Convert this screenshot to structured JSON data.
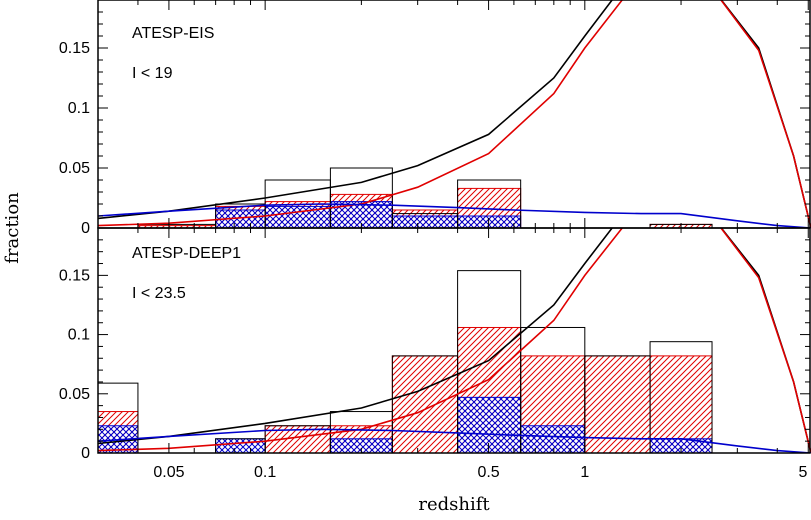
{
  "colors": {
    "axes": "#000000",
    "red": "#e00000",
    "blue": "#0000cc",
    "black": "#000000"
  },
  "chart_data": [
    {
      "type": "histogram+line",
      "panel_label": "ATESP-EIS",
      "panel_sublabel": "I < 19",
      "xlabel": "",
      "ylabel": "fraction",
      "xscale": "log",
      "xlim": [
        0.03,
        5.1
      ],
      "ylim": [
        0,
        0.19
      ],
      "grid": false,
      "x_ticks": [
        "0.05",
        "0.1",
        "0.5",
        "1",
        "5"
      ],
      "y_ticks": [
        "0",
        "0.05",
        "0.1",
        "0.15"
      ],
      "histograms": [
        {
          "name": "total",
          "style": "outline",
          "color": "#000000",
          "bins": [
            {
              "x0": 0.03,
              "x1": 0.04,
              "y": 0.0
            },
            {
              "x0": 0.04,
              "x1": 0.07,
              "y": 0.003
            },
            {
              "x0": 0.07,
              "x1": 0.1,
              "y": 0.02
            },
            {
              "x0": 0.1,
              "x1": 0.16,
              "y": 0.04
            },
            {
              "x0": 0.16,
              "x1": 0.25,
              "y": 0.05
            },
            {
              "x0": 0.25,
              "x1": 0.4,
              "y": 0.012
            },
            {
              "x0": 0.4,
              "x1": 0.63,
              "y": 0.04
            },
            {
              "x0": 1.6,
              "x1": 2.5,
              "y": 0.003
            }
          ]
        },
        {
          "name": "red-hatched",
          "style": "hatch-diagonal",
          "color": "#e00000",
          "bins": [
            {
              "x0": 0.04,
              "x1": 0.07,
              "y": 0.002
            },
            {
              "x0": 0.07,
              "x1": 0.1,
              "y": 0.018
            },
            {
              "x0": 0.1,
              "x1": 0.16,
              "y": 0.022
            },
            {
              "x0": 0.16,
              "x1": 0.25,
              "y": 0.028
            },
            {
              "x0": 0.25,
              "x1": 0.4,
              "y": 0.015
            },
            {
              "x0": 0.4,
              "x1": 0.63,
              "y": 0.033
            },
            {
              "x0": 1.6,
              "x1": 2.5,
              "y": 0.003
            }
          ]
        },
        {
          "name": "blue-crosshatched",
          "style": "hatch-cross",
          "color": "#0000cc",
          "bins": [
            {
              "x0": 0.07,
              "x1": 0.1,
              "y": 0.015
            },
            {
              "x0": 0.1,
              "x1": 0.16,
              "y": 0.018
            },
            {
              "x0": 0.16,
              "x1": 0.25,
              "y": 0.022
            },
            {
              "x0": 0.25,
              "x1": 0.4,
              "y": 0.01
            },
            {
              "x0": 0.4,
              "x1": 0.63,
              "y": 0.01
            }
          ]
        }
      ],
      "curves": [
        {
          "color": "#000000",
          "x": [
            0.03,
            0.05,
            0.1,
            0.2,
            0.3,
            0.5,
            0.8,
            1.0,
            1.3,
            2.5,
            3.5,
            4.5,
            5.1
          ],
          "y": [
            0.008,
            0.014,
            0.025,
            0.038,
            0.052,
            0.078,
            0.125,
            0.16,
            0.2,
            0.2,
            0.15,
            0.06,
            0.0
          ]
        },
        {
          "color": "#e00000",
          "x": [
            0.03,
            0.05,
            0.1,
            0.2,
            0.3,
            0.5,
            0.8,
            1.0,
            1.4,
            2.5,
            3.5,
            4.5,
            5.1
          ],
          "y": [
            0.002,
            0.004,
            0.01,
            0.02,
            0.034,
            0.062,
            0.112,
            0.15,
            0.2,
            0.2,
            0.148,
            0.06,
            0.0
          ]
        },
        {
          "color": "#0000cc",
          "x": [
            0.03,
            0.05,
            0.1,
            0.15,
            0.25,
            0.4,
            0.6,
            1.0,
            1.5,
            2.0,
            3.0,
            4.0,
            5.1
          ],
          "y": [
            0.01,
            0.014,
            0.019,
            0.02,
            0.019,
            0.017,
            0.015,
            0.013,
            0.012,
            0.012,
            0.006,
            0.002,
            0.0
          ]
        }
      ]
    },
    {
      "type": "histogram+line",
      "panel_label": "ATESP-DEEP1",
      "panel_sublabel": "I < 23.5",
      "xlabel": "redshift",
      "ylabel": "fraction",
      "xscale": "log",
      "xlim": [
        0.03,
        5.1
      ],
      "ylim": [
        0,
        0.19
      ],
      "grid": false,
      "x_ticks": [
        "0.05",
        "0.1",
        "0.5",
        "1",
        "5"
      ],
      "y_ticks": [
        "0",
        "0.05",
        "0.1",
        "0.15"
      ],
      "histograms": [
        {
          "name": "total",
          "style": "outline",
          "color": "#000000",
          "bins": [
            {
              "x0": 0.03,
              "x1": 0.04,
              "y": 0.059
            },
            {
              "x0": 0.04,
              "x1": 0.07,
              "y": 0.0
            },
            {
              "x0": 0.07,
              "x1": 0.1,
              "y": 0.012
            },
            {
              "x0": 0.1,
              "x1": 0.16,
              "y": 0.023
            },
            {
              "x0": 0.16,
              "x1": 0.25,
              "y": 0.035
            },
            {
              "x0": 0.25,
              "x1": 0.4,
              "y": 0.082
            },
            {
              "x0": 0.4,
              "x1": 0.63,
              "y": 0.154
            },
            {
              "x0": 0.63,
              "x1": 1.0,
              "y": 0.106
            },
            {
              "x0": 1.0,
              "x1": 1.6,
              "y": 0.082
            },
            {
              "x0": 1.6,
              "x1": 2.5,
              "y": 0.094
            }
          ]
        },
        {
          "name": "red-hatched",
          "style": "hatch-diagonal",
          "color": "#e00000",
          "bins": [
            {
              "x0": 0.03,
              "x1": 0.04,
              "y": 0.035
            },
            {
              "x0": 0.1,
              "x1": 0.16,
              "y": 0.023
            },
            {
              "x0": 0.16,
              "x1": 0.25,
              "y": 0.023
            },
            {
              "x0": 0.25,
              "x1": 0.4,
              "y": 0.082
            },
            {
              "x0": 0.4,
              "x1": 0.63,
              "y": 0.106
            },
            {
              "x0": 0.63,
              "x1": 1.0,
              "y": 0.082
            },
            {
              "x0": 1.0,
              "x1": 1.6,
              "y": 0.082
            },
            {
              "x0": 1.6,
              "x1": 2.5,
              "y": 0.082
            }
          ]
        },
        {
          "name": "blue-crosshatched",
          "style": "hatch-cross",
          "color": "#0000cc",
          "bins": [
            {
              "x0": 0.03,
              "x1": 0.04,
              "y": 0.023
            },
            {
              "x0": 0.07,
              "x1": 0.1,
              "y": 0.012
            },
            {
              "x0": 0.16,
              "x1": 0.25,
              "y": 0.012
            },
            {
              "x0": 0.4,
              "x1": 0.63,
              "y": 0.047
            },
            {
              "x0": 0.63,
              "x1": 1.0,
              "y": 0.023
            },
            {
              "x0": 1.6,
              "x1": 2.5,
              "y": 0.012
            }
          ]
        }
      ],
      "curves": [
        {
          "color": "#000000",
          "x": [
            0.03,
            0.05,
            0.1,
            0.2,
            0.3,
            0.5,
            0.8,
            1.0,
            1.3,
            2.5,
            3.5,
            4.5,
            5.1
          ],
          "y": [
            0.008,
            0.014,
            0.025,
            0.038,
            0.052,
            0.078,
            0.125,
            0.16,
            0.2,
            0.2,
            0.15,
            0.06,
            0.0
          ]
        },
        {
          "color": "#e00000",
          "x": [
            0.03,
            0.05,
            0.1,
            0.2,
            0.3,
            0.5,
            0.8,
            1.0,
            1.4,
            2.5,
            3.5,
            4.5,
            5.1
          ],
          "y": [
            0.002,
            0.004,
            0.01,
            0.02,
            0.034,
            0.062,
            0.112,
            0.15,
            0.2,
            0.2,
            0.148,
            0.06,
            0.0
          ]
        },
        {
          "color": "#0000cc",
          "x": [
            0.03,
            0.05,
            0.1,
            0.15,
            0.25,
            0.4,
            0.6,
            1.0,
            1.5,
            2.0,
            3.0,
            4.0,
            5.1
          ],
          "y": [
            0.01,
            0.014,
            0.019,
            0.02,
            0.019,
            0.017,
            0.015,
            0.013,
            0.012,
            0.012,
            0.006,
            0.002,
            0.0
          ]
        }
      ]
    }
  ]
}
